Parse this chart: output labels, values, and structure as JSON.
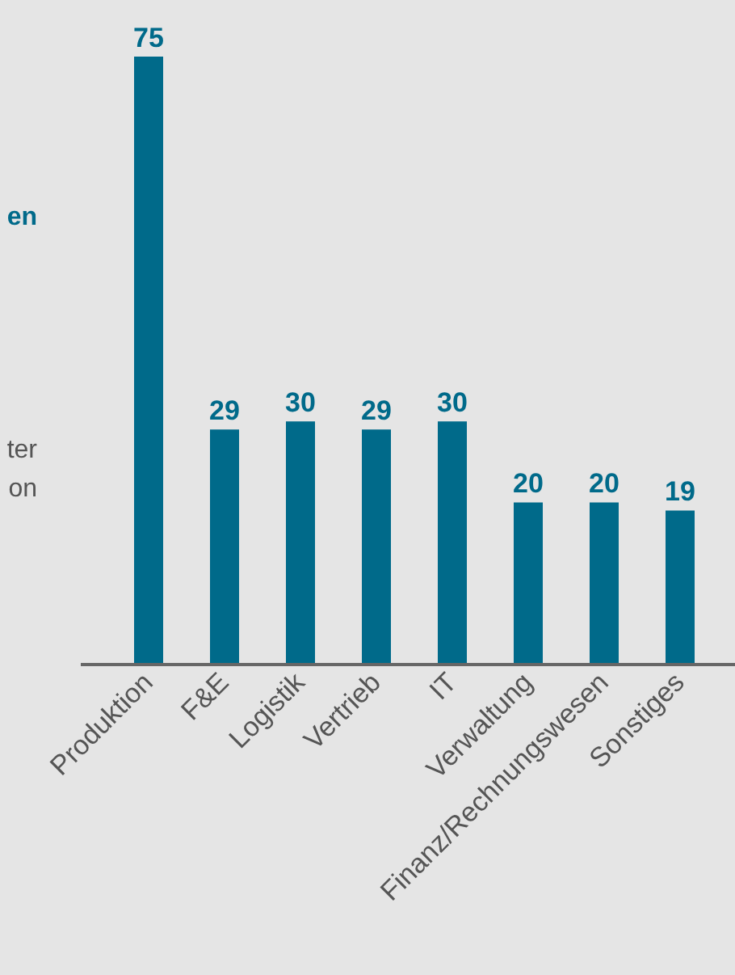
{
  "chart_data": {
    "type": "bar",
    "categories": [
      "Produktion",
      "F&E",
      "Logistik",
      "Vertrieb",
      "IT",
      "Verwaltung",
      "Finanz/Rechnungswesen",
      "Sonstiges"
    ],
    "values": [
      75,
      29,
      30,
      29,
      30,
      20,
      20,
      19
    ],
    "color": "#006a8a",
    "data_labels": true,
    "annotations": [
      "en",
      "ter",
      "on"
    ]
  }
}
